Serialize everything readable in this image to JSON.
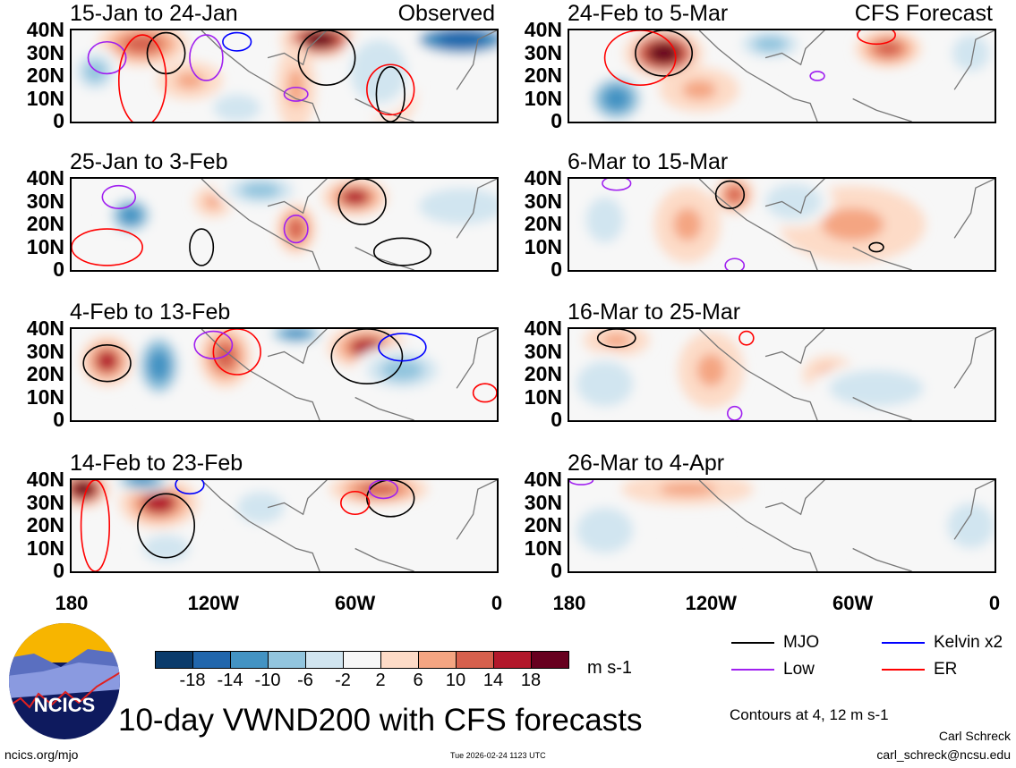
{
  "panels": [
    {
      "title": "15-Jan to 24-Jan",
      "tag": "Observed",
      "blobs": [
        [
          -150,
          34,
          14,
          7,
          12
        ],
        [
          -75,
          36,
          12,
          6,
          18
        ],
        [
          -15,
          36,
          18,
          6,
          -18
        ],
        [
          -170,
          22,
          8,
          8,
          -10
        ],
        [
          -130,
          18,
          10,
          6,
          6
        ],
        [
          -110,
          6,
          10,
          6,
          -6
        ],
        [
          -45,
          12,
          8,
          10,
          6
        ],
        [
          -50,
          22,
          12,
          14,
          -6
        ],
        [
          -85,
          15,
          6,
          14,
          6
        ]
      ],
      "contours": [
        [
          -140,
          30,
          8,
          9,
          "mjo"
        ],
        [
          -72,
          28,
          12,
          12,
          "mjo"
        ],
        [
          -45,
          12,
          6,
          12,
          "mjo"
        ],
        [
          -165,
          28,
          8,
          7,
          "low"
        ],
        [
          -123,
          28,
          7,
          10,
          "low"
        ],
        [
          -85,
          12,
          5,
          3,
          "low"
        ],
        [
          -110,
          35,
          6,
          4,
          "kelvin"
        ],
        [
          -150,
          18,
          10,
          20,
          "er"
        ],
        [
          -45,
          14,
          10,
          11,
          "er"
        ]
      ]
    },
    {
      "title": "25-Jan to 3-Feb",
      "tag": "",
      "blobs": [
        [
          -155,
          24,
          8,
          7,
          -14
        ],
        [
          -60,
          32,
          10,
          6,
          14
        ],
        [
          -85,
          18,
          6,
          8,
          10
        ],
        [
          -120,
          30,
          6,
          5,
          6
        ],
        [
          -15,
          28,
          18,
          8,
          -6
        ],
        [
          -100,
          35,
          14,
          6,
          -10
        ]
      ],
      "contours": [
        [
          -57,
          30,
          10,
          10,
          "mjo"
        ],
        [
          -40,
          8,
          12,
          6,
          "mjo"
        ],
        [
          -125,
          10,
          5,
          8,
          "mjo"
        ],
        [
          -160,
          32,
          7,
          5,
          "low"
        ],
        [
          -85,
          18,
          5,
          6,
          "low"
        ],
        [
          -165,
          10,
          15,
          8,
          "er"
        ]
      ]
    },
    {
      "title": "4-Feb to 13-Feb",
      "tag": "",
      "blobs": [
        [
          -165,
          26,
          8,
          8,
          14
        ],
        [
          -143,
          24,
          8,
          12,
          -14
        ],
        [
          -115,
          28,
          8,
          10,
          12
        ],
        [
          -55,
          32,
          12,
          7,
          14
        ],
        [
          -40,
          22,
          15,
          8,
          -10
        ],
        [
          -85,
          38,
          10,
          4,
          -14
        ]
      ],
      "contours": [
        [
          -165,
          25,
          10,
          8,
          "mjo"
        ],
        [
          -55,
          28,
          15,
          12,
          "mjo"
        ],
        [
          -110,
          30,
          10,
          10,
          "er"
        ],
        [
          -5,
          12,
          5,
          4,
          "er"
        ],
        [
          -40,
          32,
          10,
          6,
          "kelvin"
        ],
        [
          -120,
          33,
          8,
          6,
          "low"
        ]
      ]
    },
    {
      "title": "14-Feb to 23-Feb",
      "tag": "",
      "blobs": [
        [
          -175,
          36,
          8,
          6,
          18
        ],
        [
          -143,
          30,
          12,
          8,
          14
        ],
        [
          -150,
          40,
          10,
          4,
          -14
        ],
        [
          -50,
          36,
          15,
          5,
          10
        ],
        [
          -100,
          28,
          10,
          7,
          -6
        ],
        [
          -140,
          10,
          10,
          6,
          -6
        ]
      ],
      "contours": [
        [
          -140,
          20,
          12,
          14,
          "mjo"
        ],
        [
          -45,
          32,
          10,
          8,
          "mjo"
        ],
        [
          -130,
          38,
          6,
          4,
          "kelvin"
        ],
        [
          -48,
          36,
          6,
          4,
          "low"
        ],
        [
          -170,
          20,
          6,
          20,
          "er"
        ],
        [
          -60,
          30,
          6,
          5,
          "er"
        ]
      ]
    },
    {
      "title": "24-Feb to 5-Mar",
      "tag": "CFS Forecast",
      "blobs": [
        [
          -140,
          30,
          12,
          8,
          18
        ],
        [
          -160,
          10,
          10,
          9,
          -14
        ],
        [
          -95,
          34,
          12,
          6,
          -10
        ],
        [
          -45,
          32,
          10,
          6,
          10
        ],
        [
          -10,
          30,
          8,
          8,
          -6
        ],
        [
          -125,
          14,
          12,
          7,
          6
        ]
      ],
      "contours": [
        [
          -140,
          30,
          12,
          10,
          "mjo"
        ],
        [
          -150,
          28,
          15,
          12,
          "er"
        ],
        [
          -75,
          20,
          3,
          2,
          "low"
        ],
        [
          -50,
          38,
          8,
          4,
          "er"
        ]
      ]
    },
    {
      "title": "6-Mar to 15-Mar",
      "tag": "",
      "blobs": [
        [
          -110,
          33,
          6,
          6,
          10
        ],
        [
          -165,
          22,
          8,
          10,
          -6
        ],
        [
          -60,
          20,
          22,
          12,
          6
        ],
        [
          -130,
          20,
          10,
          12,
          6
        ],
        [
          -85,
          30,
          12,
          8,
          -6
        ]
      ],
      "contours": [
        [
          -112,
          33,
          6,
          6,
          "mjo"
        ],
        [
          -50,
          10,
          3,
          2,
          "mjo"
        ],
        [
          -160,
          38,
          6,
          3,
          "low"
        ],
        [
          -110,
          2,
          4,
          3,
          "low"
        ]
      ]
    },
    {
      "title": "16-Mar to 25-Mar",
      "tag": "",
      "blobs": [
        [
          -160,
          35,
          10,
          5,
          6
        ],
        [
          -165,
          16,
          12,
          10,
          -6
        ],
        [
          -70,
          20,
          8,
          6,
          6
        ],
        [
          -50,
          14,
          20,
          8,
          -6
        ],
        [
          -120,
          22,
          10,
          12,
          6
        ]
      ],
      "contours": [
        [
          -160,
          36,
          8,
          4,
          "mjo"
        ],
        [
          -105,
          36,
          3,
          3,
          "er"
        ],
        [
          -110,
          3,
          3,
          3,
          "low"
        ]
      ]
    },
    {
      "title": "26-Mar to 4-Apr",
      "tag": "",
      "blobs": [
        [
          -130,
          36,
          20,
          5,
          6
        ],
        [
          -165,
          18,
          12,
          10,
          -6
        ],
        [
          -60,
          25,
          20,
          10,
          -2
        ],
        [
          -10,
          20,
          10,
          10,
          -6
        ],
        [
          -90,
          18,
          10,
          6,
          -2
        ]
      ],
      "contours": [
        [
          -175,
          40,
          5,
          2,
          "low"
        ]
      ]
    }
  ],
  "yticks": [
    "40N",
    "30N",
    "20N",
    "10N",
    "0"
  ],
  "xticks": [
    "180",
    "120W",
    "60W",
    "0"
  ],
  "colorbar": {
    "colors": [
      "#0a3b6b",
      "#2166ac",
      "#4393c3",
      "#92c5de",
      "#d1e5f0",
      "#f7f7f7",
      "#fddbc7",
      "#f4a582",
      "#d6604d",
      "#b2182b",
      "#67001f"
    ],
    "labels": [
      "-18",
      "-14",
      "-10",
      "-6",
      "-2",
      "2",
      "6",
      "10",
      "14",
      "18"
    ],
    "units": "m s-1"
  },
  "legend": [
    {
      "label": "MJO",
      "color": "#000000"
    },
    {
      "label": "Kelvin x2",
      "color": "#0000ff"
    },
    {
      "label": "Low",
      "color": "#a020f0"
    },
    {
      "label": "ER",
      "color": "#ff0000"
    }
  ],
  "title": "10-day VWND200 with CFS forecasts",
  "contour_note": "Contours at 4, 12 m s-1",
  "logo_text": "NCICS",
  "url": "ncics.org/mjo",
  "timestamp": "Tue 2026-02-24 1123 UTC",
  "author": "Carl Schreck",
  "email": "carl_schreck@ncsu.edu"
}
